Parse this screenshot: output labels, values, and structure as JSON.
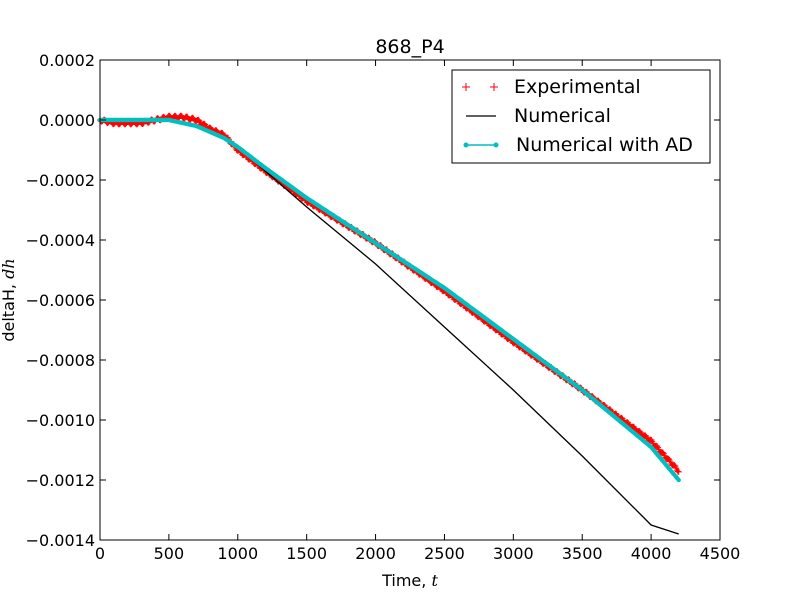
{
  "chart_data": {
    "type": "line",
    "title": "868_P4",
    "xlabel": "Time, ",
    "xlabel_var": "t",
    "ylabel": "deltaH, ",
    "ylabel_var": "dh",
    "xlim": [
      0,
      4500
    ],
    "ylim": [
      -0.0014,
      0.0002
    ],
    "xticks": [
      0,
      500,
      1000,
      1500,
      2000,
      2500,
      3000,
      3500,
      4000,
      4500
    ],
    "xtick_labels": [
      "0",
      "500",
      "1000",
      "1500",
      "2000",
      "2500",
      "3000",
      "3500",
      "4000",
      "4500"
    ],
    "yticks": [
      0.0002,
      0.0,
      -0.0002,
      -0.0004,
      -0.0006,
      -0.0008,
      -0.001,
      -0.0012,
      -0.0014
    ],
    "ytick_labels": [
      "0.0002",
      "0.0000",
      "−0.0002",
      "−0.0004",
      "−0.0006",
      "−0.0008",
      "−0.0010",
      "−0.0012",
      "−0.0014"
    ],
    "grid": false,
    "legend_position": "top-right",
    "series": [
      {
        "name": "Experimental",
        "marker": "plus",
        "color": "#ff0000",
        "x": [
          0,
          100,
          200,
          300,
          400,
          500,
          600,
          700,
          800,
          900,
          1000,
          1200,
          1500,
          2000,
          2500,
          3000,
          3500,
          4000,
          4200
        ],
        "y": [
          0.0,
          -1e-05,
          -1e-05,
          -1e-05,
          0.0,
          1e-05,
          1e-05,
          0.0,
          -3e-05,
          -5e-05,
          -0.0001,
          -0.00017,
          -0.00027,
          -0.00041,
          -0.00057,
          -0.00074,
          -0.0009,
          -0.00107,
          -0.00117
        ]
      },
      {
        "name": "Numerical",
        "marker": "none",
        "color": "#000000",
        "x": [
          0,
          500,
          600,
          700,
          800,
          900,
          1000,
          1100,
          1200,
          1500,
          2000,
          2500,
          3000,
          3500,
          4000,
          4200
        ],
        "y": [
          0.0,
          0.0,
          -1e-05,
          -2e-05,
          -4e-05,
          -6e-05,
          -9e-05,
          -0.00013,
          -0.00017,
          -0.00029,
          -0.00048,
          -0.00069,
          -0.0009,
          -0.00112,
          -0.00135,
          -0.00138
        ]
      },
      {
        "name": "Numerical with AD",
        "marker": "dot",
        "color": "#00bfbf",
        "x": [
          0,
          500,
          600,
          700,
          800,
          900,
          1000,
          1200,
          1500,
          2000,
          2500,
          3000,
          3500,
          4000,
          4200
        ],
        "y": [
          0.0,
          0.0,
          -1e-05,
          -2e-05,
          -4e-05,
          -6e-05,
          -9e-05,
          -0.00016,
          -0.00026,
          -0.00041,
          -0.00056,
          -0.00073,
          -0.0009,
          -0.00109,
          -0.0012
        ]
      }
    ]
  }
}
